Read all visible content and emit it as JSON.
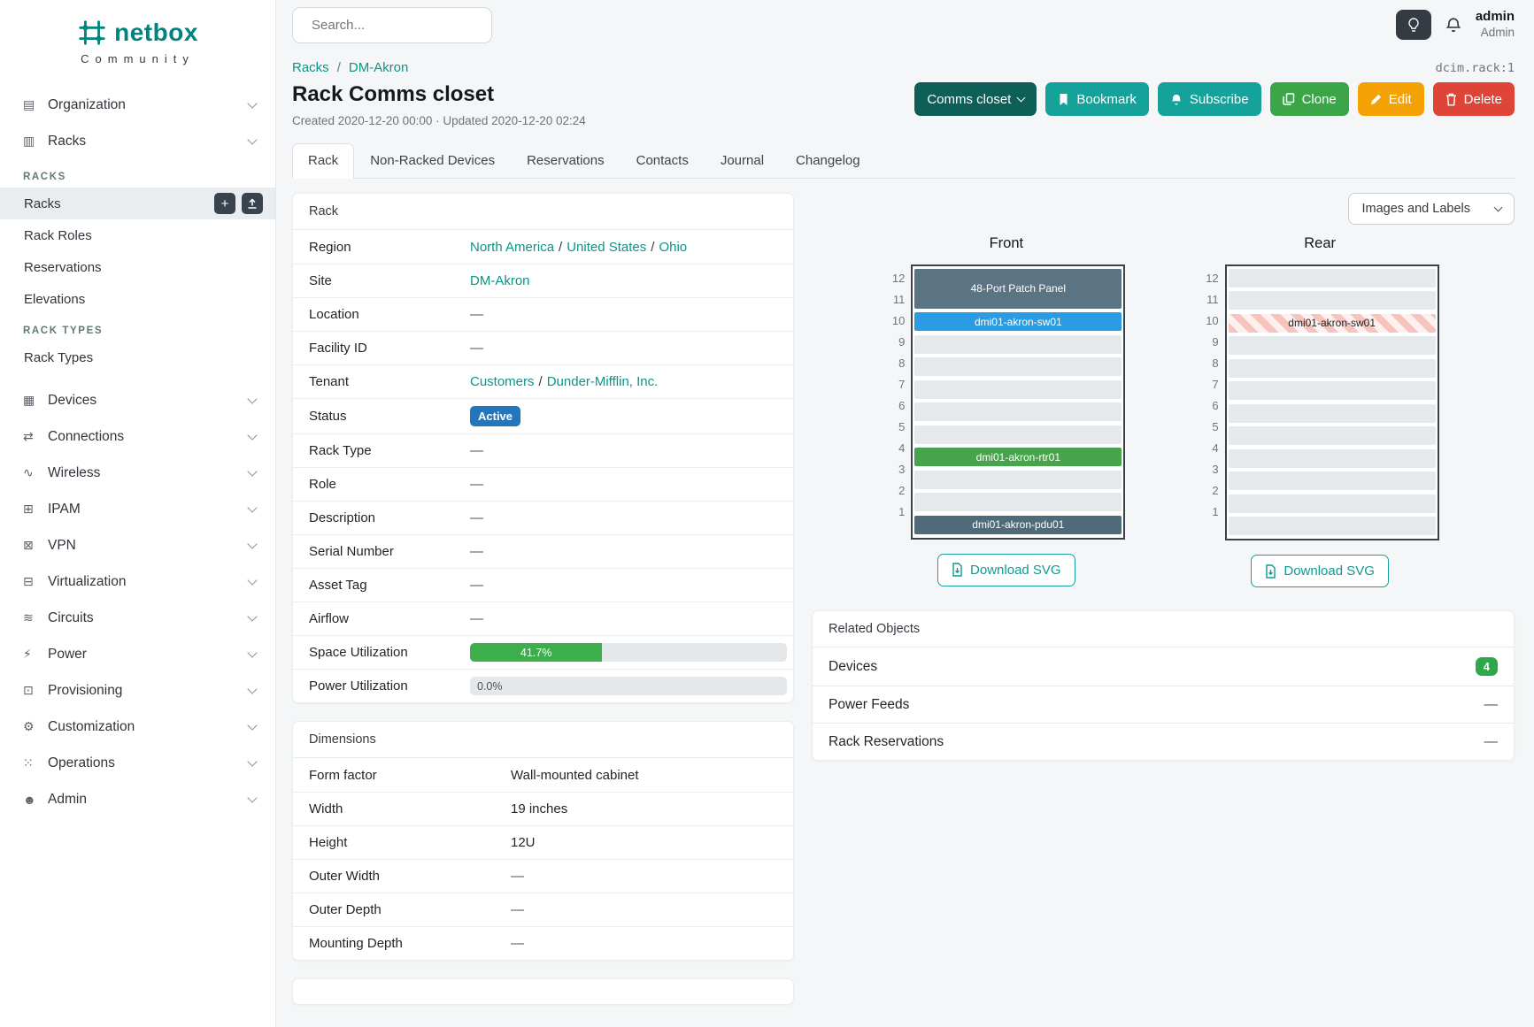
{
  "colors": {
    "brand": "#00847e",
    "link": "#0d9488",
    "teal_btn": "#14a29a",
    "dark_teal_btn": "#0e5f58",
    "green_btn": "#3aa648",
    "amber_btn": "#f5a207",
    "red_btn": "#df4439",
    "status_blue": "#2176bd",
    "progress_green": "#3cae4c",
    "count_green": "#2fa84a"
  },
  "brand": {
    "name": "netbox",
    "subtitle": "Community"
  },
  "icons": {
    "plus": "+"
  },
  "topbar": {
    "search_placeholder": "Search...",
    "user_name": "admin",
    "user_role": "Admin"
  },
  "sidebar": {
    "organization": {
      "icon": "▤",
      "label": "Organization"
    },
    "racks": {
      "icon": "▥",
      "label": "Racks",
      "sections": [
        {
          "title": "RACKS",
          "items": [
            "Racks",
            "Rack Roles",
            "Reservations",
            "Elevations"
          ]
        },
        {
          "title": "RACK TYPES",
          "items": [
            "Rack Types"
          ]
        }
      ]
    },
    "items": [
      {
        "icon": "▦",
        "label": "Devices"
      },
      {
        "icon": "⇄",
        "label": "Connections"
      },
      {
        "icon": "∿",
        "label": "Wireless"
      },
      {
        "icon": "⊞",
        "label": "IPAM"
      },
      {
        "icon": "⊠",
        "label": "VPN"
      },
      {
        "icon": "⊟",
        "label": "Virtualization"
      },
      {
        "icon": "≋",
        "label": "Circuits"
      },
      {
        "icon": "⚡",
        "label": "Power"
      },
      {
        "icon": "⊡",
        "label": "Provisioning"
      },
      {
        "icon": "⚙",
        "label": "Customization"
      },
      {
        "icon": "⁙",
        "label": "Operations"
      },
      {
        "icon": "☻",
        "label": "Admin"
      }
    ]
  },
  "breadcrumb": {
    "items": [
      "Racks",
      "DM-Akron"
    ],
    "sep": "/",
    "object_id": "dcim.rack:1"
  },
  "header": {
    "title": "Rack Comms closet",
    "meta": "Created 2020-12-20 00:00 · Updated 2020-12-20 02:24"
  },
  "actions": {
    "context": "Comms closet",
    "bookmark": "Bookmark",
    "subscribe": "Subscribe",
    "clone": "Clone",
    "edit": "Edit",
    "delete": "Delete"
  },
  "tabs": [
    "Rack",
    "Non-Racked Devices",
    "Reservations",
    "Contacts",
    "Journal",
    "Changelog"
  ],
  "rack_panel": {
    "title": "Rack",
    "region": {
      "label": "Region",
      "links": [
        "North America",
        "United States",
        "Ohio"
      ],
      "sep": "/"
    },
    "site": {
      "label": "Site",
      "link": "DM-Akron"
    },
    "location": {
      "label": "Location",
      "value": "—"
    },
    "facility_id": {
      "label": "Facility ID",
      "value": "—"
    },
    "tenant": {
      "label": "Tenant",
      "links": [
        "Customers",
        "Dunder-Mifflin, Inc."
      ],
      "sep": "/"
    },
    "status": {
      "label": "Status",
      "badge": "Active"
    },
    "rack_type": {
      "label": "Rack Type",
      "value": "—"
    },
    "role": {
      "label": "Role",
      "value": "—"
    },
    "description": {
      "label": "Description",
      "value": "—"
    },
    "serial_number": {
      "label": "Serial Number",
      "value": "—"
    },
    "asset_tag": {
      "label": "Asset Tag",
      "value": "—"
    },
    "airflow": {
      "label": "Airflow",
      "value": "—"
    },
    "space_utilization": {
      "label": "Space Utilization",
      "percent": "41.7%",
      "width": "41.7%"
    },
    "power_utilization": {
      "label": "Power Utilization",
      "percent": "0.0%",
      "width": "0%"
    }
  },
  "dimensions_panel": {
    "title": "Dimensions",
    "form_factor": {
      "label": "Form factor",
      "value": "Wall-mounted cabinet"
    },
    "width": {
      "label": "Width",
      "value": "19 inches"
    },
    "height": {
      "label": "Height",
      "value": "12U"
    },
    "outer_width": {
      "label": "Outer Width",
      "value": "—"
    },
    "outer_depth": {
      "label": "Outer Depth",
      "value": "—"
    },
    "mounting_depth": {
      "label": "Mounting Depth",
      "value": "—"
    }
  },
  "elevations": {
    "toggle_label": "Images and Labels",
    "download_label": "Download SVG",
    "unit_numbers": [
      12,
      11,
      10,
      9,
      8,
      7,
      6,
      5,
      4,
      3,
      2,
      1
    ],
    "front": {
      "title": "Front",
      "units": [
        {
          "u": 12,
          "span": 2,
          "label": "48-Port Patch Panel",
          "color": "#5b7484",
          "text": "#fff"
        },
        {
          "u": 10,
          "span": 1,
          "label": "dmi01-akron-sw01",
          "color": "#2b9ce4",
          "text": "#fff"
        },
        {
          "u": 9
        },
        {
          "u": 8
        },
        {
          "u": 7
        },
        {
          "u": 6
        },
        {
          "u": 5
        },
        {
          "u": 4,
          "span": 1,
          "label": "dmi01-akron-rtr01",
          "color": "#47a44b",
          "text": "#fff"
        },
        {
          "u": 3
        },
        {
          "u": 2
        },
        {
          "u": 1,
          "span": 1,
          "label": "dmi01-akron-pdu01",
          "color": "#4f6b79",
          "text": "#fff"
        }
      ]
    },
    "rear": {
      "title": "Rear",
      "units": [
        {
          "u": 12
        },
        {
          "u": 11
        },
        {
          "u": 10,
          "span": 1,
          "label": "dmi01-akron-sw01",
          "striped": true,
          "text": "#212529"
        },
        {
          "u": 9
        },
        {
          "u": 8
        },
        {
          "u": 7
        },
        {
          "u": 6
        },
        {
          "u": 5
        },
        {
          "u": 4
        },
        {
          "u": 3
        },
        {
          "u": 2
        },
        {
          "u": 1
        }
      ]
    }
  },
  "related": {
    "title": "Related Objects",
    "devices_label": "Devices",
    "devices_count": "4",
    "power_feeds_label": "Power Feeds",
    "power_feeds_value": "—",
    "rack_reservations_label": "Rack Reservations",
    "rack_reservations_value": "—"
  }
}
